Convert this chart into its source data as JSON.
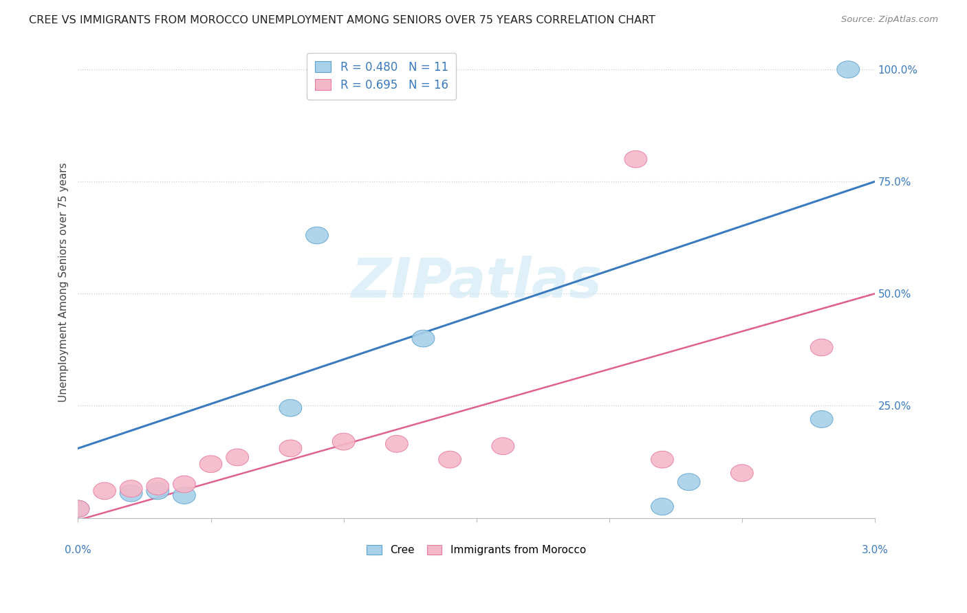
{
  "title": "CREE VS IMMIGRANTS FROM MOROCCO UNEMPLOYMENT AMONG SENIORS OVER 75 YEARS CORRELATION CHART",
  "source": "Source: ZipAtlas.com",
  "ylabel": "Unemployment Among Seniors over 75 years",
  "legend_cree": "R = 0.480   N = 11",
  "legend_morocco": "R = 0.695   N = 16",
  "cree_color": "#a8d0e8",
  "morocco_color": "#f4b8c8",
  "cree_edge_color": "#5ba3d0",
  "morocco_edge_color": "#e87aa0",
  "cree_line_color": "#3a7abf",
  "morocco_line_color": "#e06090",
  "label_color": "#3a7abf",
  "watermark_text": "ZIPatlas",
  "watermark_color": "#d0e8f5",
  "cree_x": [
    0.0,
    0.002,
    0.003,
    0.004,
    0.008,
    0.009,
    0.013,
    0.022,
    0.023,
    0.028,
    0.029
  ],
  "cree_y": [
    0.02,
    0.055,
    0.06,
    0.05,
    0.245,
    0.63,
    0.4,
    0.025,
    0.08,
    0.22,
    1.0
  ],
  "morocco_x": [
    0.0,
    0.001,
    0.002,
    0.003,
    0.004,
    0.005,
    0.006,
    0.008,
    0.01,
    0.012,
    0.014,
    0.016,
    0.022,
    0.025,
    0.028,
    0.021
  ],
  "morocco_y": [
    0.02,
    0.06,
    0.065,
    0.07,
    0.075,
    0.12,
    0.135,
    0.155,
    0.17,
    0.165,
    0.13,
    0.16,
    0.13,
    0.1,
    0.38,
    0.8
  ],
  "cree_line": [
    0.155,
    0.75
  ],
  "morocco_line": [
    -0.005,
    0.5
  ],
  "xlim": [
    0.0,
    0.03
  ],
  "ylim": [
    0.0,
    1.05
  ],
  "figsize": [
    14.06,
    8.92
  ],
  "dpi": 100
}
